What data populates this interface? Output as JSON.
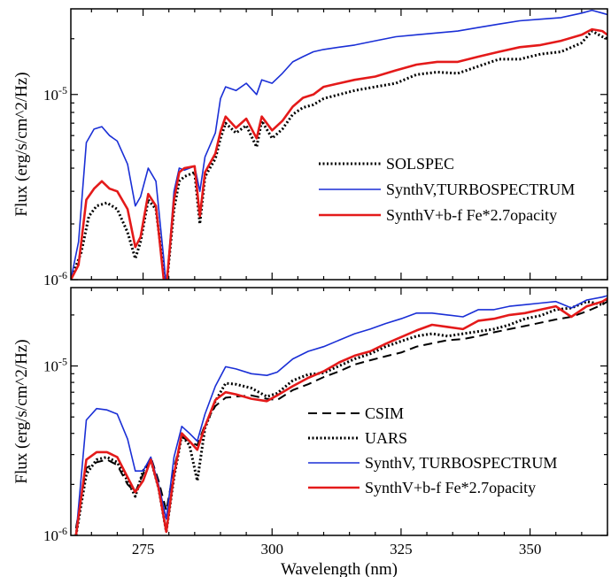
{
  "chart_data": [
    {
      "type": "line",
      "ylabel": "Flux (erg/s/cm^2/Hz)",
      "xlabel": "",
      "xlim": [
        261,
        365
      ],
      "ylim": [
        1e-06,
        2.9e-05
      ],
      "y_scale": "log",
      "y_ticks": [
        {
          "value": 1e-06,
          "base": "10",
          "exp": "-6"
        },
        {
          "value": 1e-05,
          "base": "10",
          "exp": "-5"
        }
      ],
      "x_ticks": [],
      "legend_position": "lower-right",
      "series": [
        {
          "name": "SOLSPEC",
          "color": "#000000",
          "dash": "dotted",
          "x": [
            261,
            263,
            264.5,
            266,
            268,
            270,
            272,
            273.5,
            274.5,
            276,
            277.5,
            279,
            279.5,
            281,
            282,
            283,
            285,
            286,
            287,
            289,
            290,
            291,
            293,
            295,
            297,
            298,
            300,
            302,
            304,
            306,
            308,
            310,
            313,
            316,
            320,
            324,
            328,
            332,
            336,
            340,
            344,
            348,
            352,
            356,
            360,
            362,
            364,
            365
          ],
          "y": [
            1e-06,
            1.4e-06,
            2.2e-06,
            2.5e-06,
            2.6e-06,
            2.4e-06,
            1.8e-06,
            1.3e-06,
            1.6e-06,
            2.7e-06,
            2.4e-06,
            1.1e-06,
            9e-07,
            2.4e-06,
            3.4e-06,
            3.6e-06,
            3.8e-06,
            2e-06,
            3.6e-06,
            4.5e-06,
            5.8e-06,
            7e-06,
            6.2e-06,
            6.8e-06,
            5.2e-06,
            7.2e-06,
            5.8e-06,
            6.5e-06,
            7.8e-06,
            8.5e-06,
            8.8e-06,
            9.5e-06,
            1e-05,
            1.05e-05,
            1.1e-05,
            1.15e-05,
            1.28e-05,
            1.32e-05,
            1.3e-05,
            1.42e-05,
            1.55e-05,
            1.55e-05,
            1.65e-05,
            1.7e-05,
            1.9e-05,
            2.2e-05,
            2.05e-05,
            2e-05
          ]
        },
        {
          "name": "SynthV,TURBOSPECTRUM",
          "color": "#1a2fd6",
          "dash": "solid",
          "x": [
            261,
            262.5,
            264,
            265.5,
            267,
            268.5,
            270,
            272,
            273.5,
            274.5,
            276,
            277.5,
            279,
            279.5,
            281,
            282,
            283,
            285,
            286,
            287,
            289,
            290,
            291,
            293,
            295,
            297,
            298,
            300,
            302,
            304,
            306,
            308,
            310,
            313,
            316,
            320,
            324,
            328,
            332,
            336,
            340,
            344,
            348,
            352,
            356,
            360,
            362,
            364,
            365
          ],
          "y": [
            1e-06,
            1.6e-06,
            5.5e-06,
            6.5e-06,
            6.7e-06,
            6e-06,
            5.6e-06,
            4.2e-06,
            2.5e-06,
            2.8e-06,
            4e-06,
            3.4e-06,
            1.3e-06,
            9e-07,
            3e-06,
            4e-06,
            3.9e-06,
            4.1e-06,
            3e-06,
            4.6e-06,
            6.2e-06,
            9.5e-06,
            1.1e-05,
            1.05e-05,
            1.15e-05,
            1e-05,
            1.2e-05,
            1.15e-05,
            1.3e-05,
            1.5e-05,
            1.6e-05,
            1.7e-05,
            1.75e-05,
            1.8e-05,
            1.85e-05,
            1.95e-05,
            2.05e-05,
            2.1e-05,
            2.15e-05,
            2.2e-05,
            2.3e-05,
            2.4e-05,
            2.5e-05,
            2.55e-05,
            2.6e-05,
            2.75e-05,
            2.85e-05,
            2.75e-05,
            2.7e-05
          ]
        },
        {
          "name": "SynthV+b-f Fe*2.7opacity",
          "color": "#e41a1a",
          "dash": "solid",
          "x": [
            261,
            262.5,
            264,
            265.5,
            267,
            268.5,
            270,
            272,
            273.5,
            274.5,
            276,
            277.5,
            279,
            279.5,
            281,
            282,
            283,
            285,
            286,
            287,
            289,
            290,
            291,
            293,
            295,
            297,
            298,
            300,
            302,
            304,
            306,
            308,
            310,
            313,
            316,
            320,
            324,
            328,
            332,
            336,
            340,
            344,
            348,
            352,
            356,
            360,
            362,
            364,
            365
          ],
          "y": [
            1e-06,
            1.2e-06,
            2.7e-06,
            3.1e-06,
            3.4e-06,
            3.1e-06,
            3e-06,
            2.4e-06,
            1.5e-06,
            1.7e-06,
            2.9e-06,
            2.5e-06,
            1e-06,
            9e-07,
            2.7e-06,
            3.8e-06,
            4e-06,
            4.1e-06,
            2.2e-06,
            3.8e-06,
            4.8e-06,
            6.3e-06,
            7.6e-06,
            6.6e-06,
            7.4e-06,
            5.8e-06,
            7.6e-06,
            6.4e-06,
            7.2e-06,
            8.6e-06,
            9.6e-06,
            1e-05,
            1.1e-05,
            1.15e-05,
            1.2e-05,
            1.25e-05,
            1.35e-05,
            1.45e-05,
            1.5e-05,
            1.5e-05,
            1.6e-05,
            1.7e-05,
            1.8e-05,
            1.85e-05,
            1.95e-05,
            2.1e-05,
            2.25e-05,
            2.2e-05,
            2.1e-05
          ]
        }
      ]
    },
    {
      "type": "line",
      "ylabel": "Flux (erg/s/cm^2/Hz)",
      "xlabel": "Wavelength (nm)",
      "xlim": [
        261,
        365
      ],
      "ylim": [
        1e-06,
        2.9e-05
      ],
      "y_scale": "log",
      "y_ticks": [
        {
          "value": 1e-06,
          "base": "10",
          "exp": "-6"
        },
        {
          "value": 1e-05,
          "base": "10",
          "exp": "-5"
        }
      ],
      "x_ticks": [
        275,
        300,
        325,
        350
      ],
      "x_tick_labels": [
        "275",
        "300",
        "325",
        "350"
      ],
      "legend_position": "lower-right",
      "series": [
        {
          "name": "CSIM",
          "color": "#000000",
          "dash": "dashed",
          "x": [
            262,
            264,
            266,
            268,
            270,
            272,
            273.5,
            275,
            276.5,
            278,
            279.5,
            281,
            282.5,
            284,
            285.5,
            287,
            289,
            291,
            293,
            296,
            299,
            301,
            304,
            307,
            310,
            313,
            316,
            319,
            322,
            325,
            328,
            331,
            334,
            337,
            340,
            343,
            346,
            349,
            352,
            355,
            358,
            361,
            364,
            365
          ],
          "y": [
            1.1e-06,
            2.5e-06,
            2.7e-06,
            2.8e-06,
            2.6e-06,
            2e-06,
            1.8e-06,
            2.3e-06,
            2.9e-06,
            2.1e-06,
            1.4e-06,
            2.5e-06,
            3.8e-06,
            3.6e-06,
            3.4e-06,
            4.5e-06,
            5.8e-06,
            6.5e-06,
            6.6e-06,
            6.7e-06,
            6.4e-06,
            6.3e-06,
            7.2e-06,
            7.8e-06,
            8.6e-06,
            9.3e-06,
            1.02e-05,
            1.08e-05,
            1.14e-05,
            1.2e-05,
            1.3e-05,
            1.36e-05,
            1.42e-05,
            1.44e-05,
            1.5e-05,
            1.58e-05,
            1.65e-05,
            1.72e-05,
            1.8e-05,
            1.88e-05,
            1.95e-05,
            2.1e-05,
            2.3e-05,
            2.4e-05
          ]
        },
        {
          "name": "UARS",
          "color": "#000000",
          "dash": "dotted",
          "x": [
            262,
            264,
            266,
            268,
            270,
            272,
            273.5,
            275,
            276.5,
            278,
            279.5,
            281,
            282.5,
            284,
            285.5,
            287,
            289,
            291,
            293,
            296,
            299,
            301,
            304,
            307,
            310,
            313,
            316,
            319,
            322,
            325,
            328,
            331,
            334,
            337,
            340,
            343,
            346,
            349,
            352,
            355,
            358,
            361,
            364,
            365
          ],
          "y": [
            1e-06,
            2.3e-06,
            2.8e-06,
            2.9e-06,
            2.7e-06,
            2.1e-06,
            1.7e-06,
            2.4e-06,
            2.8e-06,
            1.9e-06,
            1.05e-06,
            2.2e-06,
            3.9e-06,
            3.4e-06,
            2.1e-06,
            4.3e-06,
            6.2e-06,
            7.9e-06,
            7.8e-06,
            7.4e-06,
            6.6e-06,
            6.9e-06,
            8.2e-06,
            8.9e-06,
            9.1e-06,
            1e-05,
            1.1e-05,
            1.18e-05,
            1.3e-05,
            1.4e-05,
            1.5e-05,
            1.55e-05,
            1.5e-05,
            1.55e-05,
            1.6e-05,
            1.65e-05,
            1.75e-05,
            1.9e-05,
            1.98e-05,
            2.15e-05,
            2.2e-05,
            2.4e-05,
            2.3e-05,
            2.5e-05
          ]
        },
        {
          "name": "SynthV, TURBOSPECTRUM",
          "color": "#1a2fd6",
          "dash": "solid",
          "x": [
            262,
            264,
            266,
            268,
            270,
            272,
            273.5,
            275,
            276.5,
            278,
            279.5,
            281,
            282.5,
            284,
            285.5,
            287,
            289,
            291,
            293,
            296,
            299,
            301,
            304,
            307,
            310,
            313,
            316,
            319,
            322,
            325,
            328,
            331,
            334,
            337,
            340,
            343,
            346,
            349,
            352,
            355,
            358,
            361,
            364,
            365
          ],
          "y": [
            1e-06,
            4.8e-06,
            5.6e-06,
            5.5e-06,
            5.2e-06,
            3.7e-06,
            2.4e-06,
            2.4e-06,
            2.9e-06,
            2e-06,
            1.25e-06,
            2.9e-06,
            4.4e-06,
            4e-06,
            3.6e-06,
            5.2e-06,
            7.6e-06,
            9.9e-06,
            9.6e-06,
            9e-06,
            8.8e-06,
            9.2e-06,
            1.1e-05,
            1.22e-05,
            1.3e-05,
            1.42e-05,
            1.55e-05,
            1.65e-05,
            1.78e-05,
            1.9e-05,
            2.05e-05,
            2.05e-05,
            2e-05,
            1.95e-05,
            2.15e-05,
            2.15e-05,
            2.25e-05,
            2.3e-05,
            2.35e-05,
            2.4e-05,
            2.2e-05,
            2.45e-05,
            2.55e-05,
            2.6e-05
          ]
        },
        {
          "name": "SynthV+b-f Fe*2.7opacity",
          "color": "#e41a1a",
          "dash": "solid",
          "x": [
            262,
            264,
            266,
            268,
            270,
            272,
            273.5,
            275,
            276.5,
            278,
            279.5,
            281,
            282.5,
            284,
            285.5,
            287,
            289,
            291,
            293,
            296,
            299,
            301,
            304,
            307,
            310,
            313,
            316,
            319,
            322,
            325,
            328,
            331,
            334,
            337,
            340,
            343,
            346,
            349,
            352,
            355,
            358,
            361,
            364,
            365
          ],
          "y": [
            1e-06,
            2.8e-06,
            3.1e-06,
            3.1e-06,
            2.9e-06,
            2.2e-06,
            1.8e-06,
            2.1e-06,
            2.8e-06,
            1.9e-06,
            1.05e-06,
            2.3e-06,
            4e-06,
            3.6e-06,
            3.2e-06,
            4.4e-06,
            6.3e-06,
            7e-06,
            6.8e-06,
            6.4e-06,
            6.2e-06,
            6.7e-06,
            7.6e-06,
            8.5e-06,
            9.3e-06,
            1.05e-05,
            1.15e-05,
            1.22e-05,
            1.35e-05,
            1.48e-05,
            1.62e-05,
            1.75e-05,
            1.7e-05,
            1.65e-05,
            1.85e-05,
            1.9e-05,
            2e-05,
            2.05e-05,
            2.15e-05,
            2.25e-05,
            1.95e-05,
            2.25e-05,
            2.4e-05,
            2.5e-05
          ]
        }
      ]
    }
  ]
}
